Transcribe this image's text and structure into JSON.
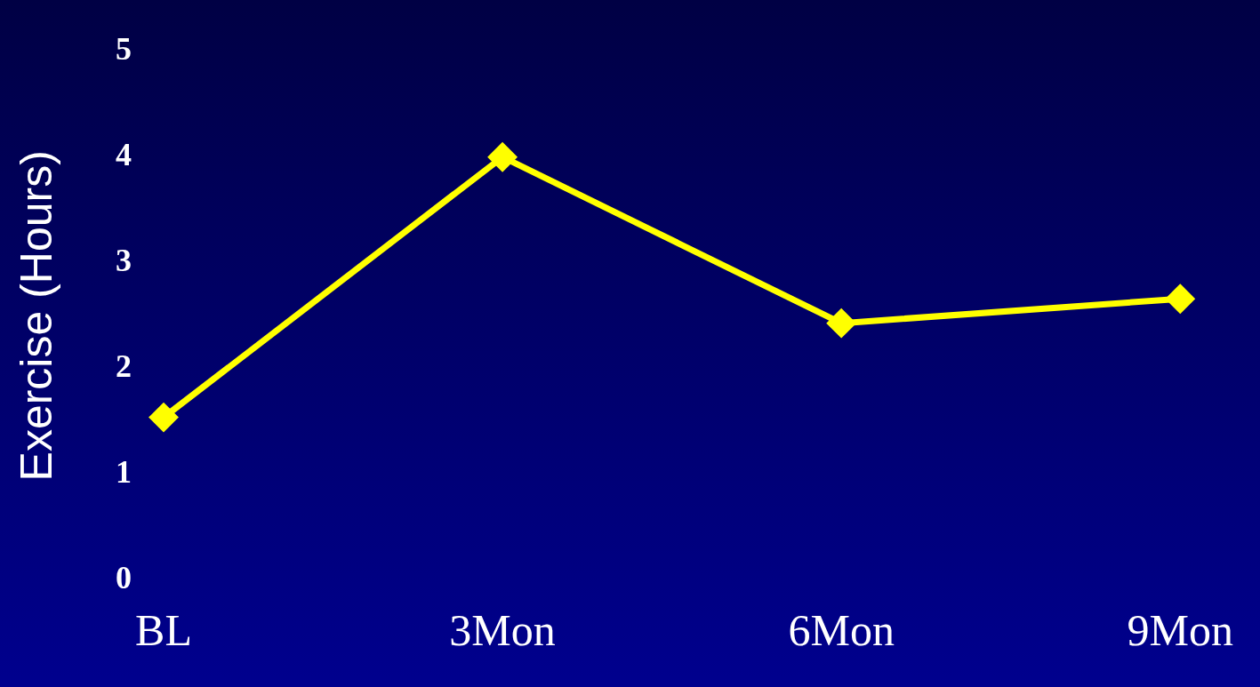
{
  "chart_data": {
    "type": "line",
    "ylabel": "Exercise (Hours)",
    "categories": [
      "BL",
      "3Mon",
      "6Mon",
      "9Mon"
    ],
    "series": [
      {
        "color": "#ffff00",
        "values": [
          1.54,
          4.0,
          2.43,
          2.66
        ]
      }
    ],
    "ylim": [
      0,
      5
    ],
    "yticks": [
      0,
      1,
      2,
      3,
      4,
      5
    ],
    "grid": false,
    "legend": false,
    "marker": "diamond",
    "line_style": "solid"
  }
}
